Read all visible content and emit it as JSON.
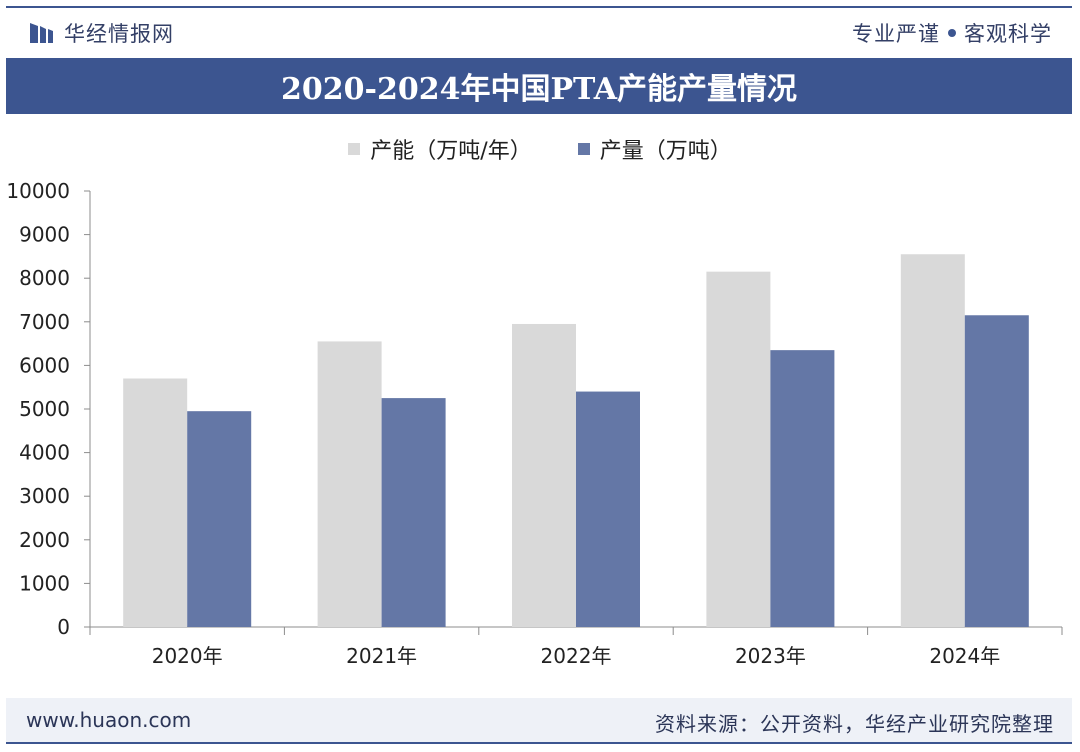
{
  "header": {
    "brand_name": "华经情报网",
    "slogan_left": "专业严谨",
    "slogan_right": "客观科学"
  },
  "colors": {
    "brand": "#3c5590",
    "capacity": "#d9d9d9",
    "output": "#6477a6"
  },
  "chart_data": {
    "type": "bar",
    "title": "2020-2024年中国PTA产能产量情况",
    "categories": [
      "2020年",
      "2021年",
      "2022年",
      "2023年",
      "2024年"
    ],
    "series": [
      {
        "name": "产能（万吨/年）",
        "values": [
          5700,
          6550,
          6950,
          8150,
          8550
        ]
      },
      {
        "name": "产量（万吨）",
        "values": [
          4950,
          5250,
          5400,
          6350,
          7150
        ]
      }
    ],
    "ylim": [
      0,
      10000
    ],
    "yticks": [
      0,
      1000,
      2000,
      3000,
      4000,
      5000,
      6000,
      7000,
      8000,
      9000,
      10000
    ],
    "xlabel": "",
    "ylabel": "",
    "legend": "top"
  },
  "footer": {
    "url": "www.huaon.com",
    "source": "资料来源：公开资料，华经产业研究院整理"
  }
}
